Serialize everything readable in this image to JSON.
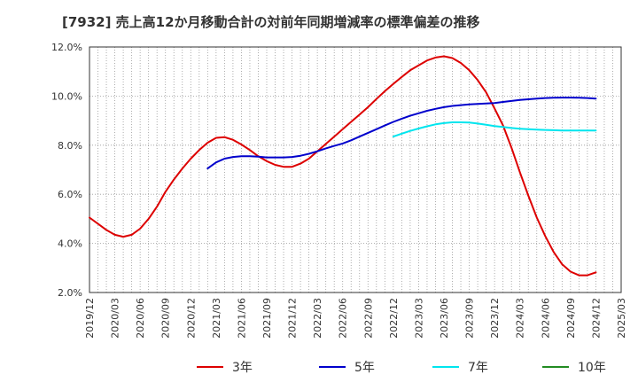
{
  "chart_data": {
    "type": "line",
    "title": "[7932]  売上高12か月移動合計の対前年同期増減率の標準偏差の推移",
    "xlabel": "",
    "ylabel": "",
    "ylim": [
      2.0,
      12.0
    ],
    "yticks": [
      "2.0%",
      "4.0%",
      "6.0%",
      "8.0%",
      "10.0%",
      "12.0%"
    ],
    "xticks": [
      "2019/12",
      "2020/03",
      "2020/06",
      "2020/09",
      "2020/12",
      "2021/03",
      "2021/06",
      "2021/09",
      "2021/12",
      "2022/03",
      "2022/06",
      "2022/09",
      "2022/12",
      "2023/03",
      "2023/06",
      "2023/09",
      "2023/12",
      "2024/03",
      "2024/06",
      "2024/09",
      "2024/12",
      "2025/03"
    ],
    "grid": true,
    "legend_position": "bottom",
    "series": [
      {
        "name": "3年",
        "color": "#dd0000",
        "points": [
          [
            "2019/12",
            5.05
          ],
          [
            "2020/01",
            4.8
          ],
          [
            "2020/02",
            4.55
          ],
          [
            "2020/03",
            4.35
          ],
          [
            "2020/04",
            4.27
          ],
          [
            "2020/05",
            4.35
          ],
          [
            "2020/06",
            4.6
          ],
          [
            "2020/07",
            5.0
          ],
          [
            "2020/08",
            5.5
          ],
          [
            "2020/09",
            6.1
          ],
          [
            "2020/10",
            6.6
          ],
          [
            "2020/11",
            7.05
          ],
          [
            "2020/12",
            7.45
          ],
          [
            "2021/01",
            7.8
          ],
          [
            "2021/02",
            8.1
          ],
          [
            "2021/03",
            8.3
          ],
          [
            "2021/04",
            8.33
          ],
          [
            "2021/05",
            8.22
          ],
          [
            "2021/06",
            8.03
          ],
          [
            "2021/07",
            7.8
          ],
          [
            "2021/08",
            7.55
          ],
          [
            "2021/09",
            7.35
          ],
          [
            "2021/10",
            7.2
          ],
          [
            "2021/11",
            7.12
          ],
          [
            "2021/12",
            7.12
          ],
          [
            "2022/01",
            7.25
          ],
          [
            "2022/02",
            7.45
          ],
          [
            "2022/03",
            7.75
          ],
          [
            "2022/04",
            8.05
          ],
          [
            "2022/05",
            8.35
          ],
          [
            "2022/06",
            8.65
          ],
          [
            "2022/07",
            8.95
          ],
          [
            "2022/08",
            9.25
          ],
          [
            "2022/09",
            9.55
          ],
          [
            "2022/10",
            9.88
          ],
          [
            "2022/11",
            10.2
          ],
          [
            "2022/12",
            10.5
          ],
          [
            "2023/01",
            10.78
          ],
          [
            "2023/02",
            11.05
          ],
          [
            "2023/03",
            11.25
          ],
          [
            "2023/04",
            11.45
          ],
          [
            "2023/05",
            11.57
          ],
          [
            "2023/06",
            11.62
          ],
          [
            "2023/07",
            11.55
          ],
          [
            "2023/08",
            11.35
          ],
          [
            "2023/09",
            11.05
          ],
          [
            "2023/10",
            10.65
          ],
          [
            "2023/11",
            10.15
          ],
          [
            "2023/12",
            9.5
          ],
          [
            "2024/01",
            8.8
          ],
          [
            "2024/02",
            7.9
          ],
          [
            "2024/03",
            6.9
          ],
          [
            "2024/04",
            5.95
          ],
          [
            "2024/05",
            5.05
          ],
          [
            "2024/06",
            4.3
          ],
          [
            "2024/07",
            3.65
          ],
          [
            "2024/08",
            3.15
          ],
          [
            "2024/09",
            2.85
          ],
          [
            "2024/10",
            2.7
          ],
          [
            "2024/11",
            2.7
          ],
          [
            "2024/12",
            2.82
          ]
        ]
      },
      {
        "name": "5年",
        "color": "#0000cc",
        "points": [
          [
            "2021/02",
            7.05
          ],
          [
            "2021/03",
            7.3
          ],
          [
            "2021/04",
            7.45
          ],
          [
            "2021/05",
            7.52
          ],
          [
            "2021/06",
            7.55
          ],
          [
            "2021/07",
            7.55
          ],
          [
            "2021/08",
            7.53
          ],
          [
            "2021/09",
            7.5
          ],
          [
            "2021/10",
            7.5
          ],
          [
            "2021/11",
            7.5
          ],
          [
            "2021/12",
            7.52
          ],
          [
            "2022/01",
            7.57
          ],
          [
            "2022/02",
            7.65
          ],
          [
            "2022/03",
            7.75
          ],
          [
            "2022/04",
            7.87
          ],
          [
            "2022/05",
            7.97
          ],
          [
            "2022/06",
            8.07
          ],
          [
            "2022/07",
            8.2
          ],
          [
            "2022/08",
            8.35
          ],
          [
            "2022/09",
            8.5
          ],
          [
            "2022/10",
            8.65
          ],
          [
            "2022/11",
            8.8
          ],
          [
            "2022/12",
            8.95
          ],
          [
            "2023/01",
            9.08
          ],
          [
            "2023/02",
            9.2
          ],
          [
            "2023/03",
            9.3
          ],
          [
            "2023/04",
            9.4
          ],
          [
            "2023/05",
            9.48
          ],
          [
            "2023/06",
            9.55
          ],
          [
            "2023/07",
            9.6
          ],
          [
            "2023/08",
            9.63
          ],
          [
            "2023/09",
            9.66
          ],
          [
            "2023/10",
            9.68
          ],
          [
            "2023/11",
            9.7
          ],
          [
            "2023/12",
            9.72
          ],
          [
            "2024/01",
            9.76
          ],
          [
            "2024/02",
            9.8
          ],
          [
            "2024/03",
            9.84
          ],
          [
            "2024/04",
            9.87
          ],
          [
            "2024/05",
            9.9
          ],
          [
            "2024/06",
            9.92
          ],
          [
            "2024/07",
            9.93
          ],
          [
            "2024/08",
            9.94
          ],
          [
            "2024/09",
            9.94
          ],
          [
            "2024/10",
            9.93
          ],
          [
            "2024/11",
            9.92
          ],
          [
            "2024/12",
            9.9
          ]
        ]
      },
      {
        "name": "7年",
        "color": "#00e5ee",
        "points": [
          [
            "2022/12",
            8.35
          ],
          [
            "2023/01",
            8.47
          ],
          [
            "2023/02",
            8.58
          ],
          [
            "2023/03",
            8.68
          ],
          [
            "2023/04",
            8.77
          ],
          [
            "2023/05",
            8.85
          ],
          [
            "2023/06",
            8.9
          ],
          [
            "2023/07",
            8.93
          ],
          [
            "2023/08",
            8.93
          ],
          [
            "2023/09",
            8.92
          ],
          [
            "2023/10",
            8.88
          ],
          [
            "2023/11",
            8.83
          ],
          [
            "2023/12",
            8.78
          ],
          [
            "2024/01",
            8.74
          ],
          [
            "2024/02",
            8.7
          ],
          [
            "2024/03",
            8.67
          ],
          [
            "2024/04",
            8.65
          ],
          [
            "2024/05",
            8.63
          ],
          [
            "2024/06",
            8.62
          ],
          [
            "2024/07",
            8.61
          ],
          [
            "2024/08",
            8.6
          ],
          [
            "2024/09",
            8.6
          ],
          [
            "2024/10",
            8.6
          ],
          [
            "2024/11",
            8.6
          ],
          [
            "2024/12",
            8.6
          ]
        ]
      },
      {
        "name": "10年",
        "color": "#228b22",
        "points": []
      }
    ]
  }
}
